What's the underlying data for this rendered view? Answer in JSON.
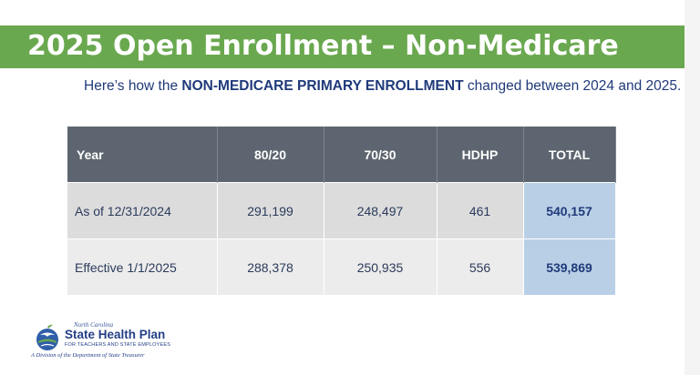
{
  "header": {
    "title": "2025 Open Enrollment – Non-Medicare"
  },
  "subtitle": {
    "before": "Here’s how the ",
    "highlight": "NON-MEDICARE PRIMARY ENROLLMENT",
    "after": " changed between 2024 and 2025."
  },
  "table": {
    "headers": [
      "Year",
      "80/20",
      "70/30",
      "HDHP",
      "TOTAL"
    ],
    "rows": [
      [
        "As of 12/31/2024",
        "291,199",
        "248,497",
        "461",
        "540,157"
      ],
      [
        "Effective 1/1/2025",
        "288,378",
        "250,935",
        "556",
        "539,869"
      ]
    ]
  },
  "logo": {
    "state": "North Carolina",
    "name": "State Health Plan",
    "tagline": "FOR TEACHERS AND STATE EMPLOYEES",
    "division": "A Division of the Department of State Treasurer"
  },
  "colors": {
    "title_bar": "#6aa84f",
    "header_row": "#5d6670",
    "total_cell": "#b9cfe6",
    "text_blue": "#1f3a7a"
  }
}
